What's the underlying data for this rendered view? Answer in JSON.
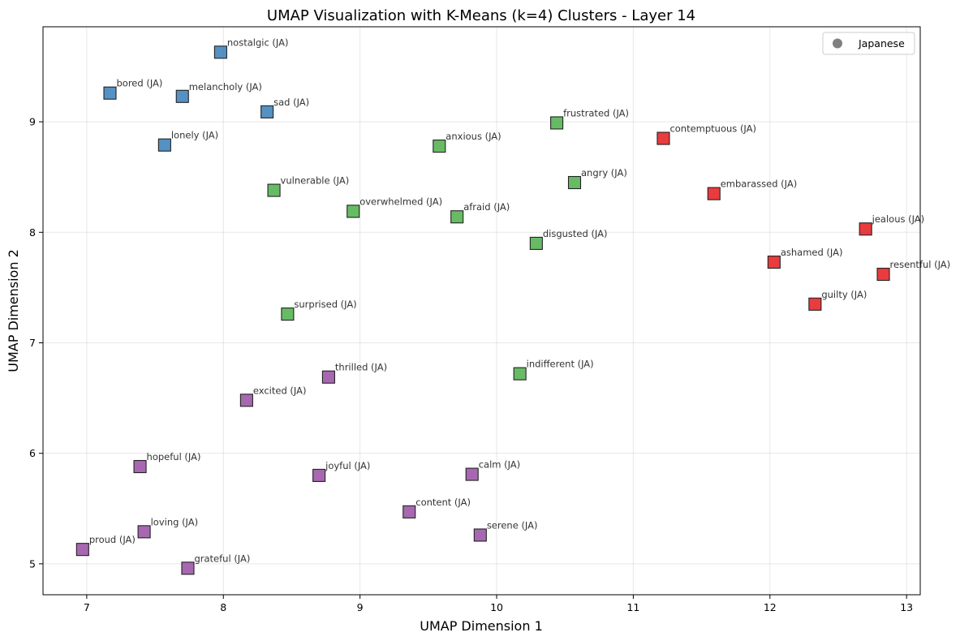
{
  "chart_data": {
    "type": "scatter",
    "title": "UMAP Visualization with K-Means (k=4) Clusters - Layer 14",
    "xlabel": "UMAP Dimension 1",
    "ylabel": "UMAP Dimension 2",
    "xlim": [
      6.68,
      13.1
    ],
    "ylim": [
      4.72,
      9.86
    ],
    "xticks": [
      7,
      8,
      9,
      10,
      11,
      12,
      13
    ],
    "yticks": [
      5,
      6,
      7,
      8,
      9
    ],
    "grid": true,
    "legend": {
      "placement": "top-right",
      "entries": [
        {
          "label": "Japanese",
          "color": "#808080",
          "marker": "circle"
        }
      ]
    },
    "cluster_colors": {
      "0": "#377eb8",
      "1": "#4daf4a",
      "2": "#e41a1c",
      "3": "#984ea3"
    },
    "points": [
      {
        "label": "nostalgic (JA)",
        "x": 7.98,
        "y": 9.63,
        "cluster": 0
      },
      {
        "label": "bored (JA)",
        "x": 7.17,
        "y": 9.26,
        "cluster": 0
      },
      {
        "label": "melancholy (JA)",
        "x": 7.7,
        "y": 9.23,
        "cluster": 0
      },
      {
        "label": "sad (JA)",
        "x": 8.32,
        "y": 9.09,
        "cluster": 0
      },
      {
        "label": "lonely (JA)",
        "x": 7.57,
        "y": 8.79,
        "cluster": 0
      },
      {
        "label": "frustrated (JA)",
        "x": 10.44,
        "y": 8.99,
        "cluster": 1
      },
      {
        "label": "anxious (JA)",
        "x": 9.58,
        "y": 8.78,
        "cluster": 1
      },
      {
        "label": "vulnerable (JA)",
        "x": 8.37,
        "y": 8.38,
        "cluster": 1
      },
      {
        "label": "angry (JA)",
        "x": 10.57,
        "y": 8.45,
        "cluster": 1
      },
      {
        "label": "overwhelmed (JA)",
        "x": 8.95,
        "y": 8.19,
        "cluster": 1
      },
      {
        "label": "afraid (JA)",
        "x": 9.71,
        "y": 8.14,
        "cluster": 1
      },
      {
        "label": "disgusted (JA)",
        "x": 10.29,
        "y": 7.9,
        "cluster": 1
      },
      {
        "label": "surprised (JA)",
        "x": 8.47,
        "y": 7.26,
        "cluster": 1
      },
      {
        "label": "indifferent (JA)",
        "x": 10.17,
        "y": 6.72,
        "cluster": 1
      },
      {
        "label": "contemptuous (JA)",
        "x": 11.22,
        "y": 8.85,
        "cluster": 2
      },
      {
        "label": "embarassed (JA)",
        "x": 11.59,
        "y": 8.35,
        "cluster": 2
      },
      {
        "label": "jealous (JA)",
        "x": 12.7,
        "y": 8.03,
        "cluster": 2
      },
      {
        "label": "ashamed (JA)",
        "x": 12.03,
        "y": 7.73,
        "cluster": 2
      },
      {
        "label": "resentful (JA)",
        "x": 12.83,
        "y": 7.62,
        "cluster": 2
      },
      {
        "label": "guilty (JA)",
        "x": 12.33,
        "y": 7.35,
        "cluster": 2
      },
      {
        "label": "thrilled (JA)",
        "x": 8.77,
        "y": 6.69,
        "cluster": 3
      },
      {
        "label": "excited (JA)",
        "x": 8.17,
        "y": 6.48,
        "cluster": 3
      },
      {
        "label": "hopeful (JA)",
        "x": 7.39,
        "y": 5.88,
        "cluster": 3
      },
      {
        "label": "joyful (JA)",
        "x": 8.7,
        "y": 5.8,
        "cluster": 3
      },
      {
        "label": "calm (JA)",
        "x": 9.82,
        "y": 5.81,
        "cluster": 3
      },
      {
        "label": "content (JA)",
        "x": 9.36,
        "y": 5.47,
        "cluster": 3
      },
      {
        "label": "loving (JA)",
        "x": 7.42,
        "y": 5.29,
        "cluster": 3
      },
      {
        "label": "serene (JA)",
        "x": 9.88,
        "y": 5.26,
        "cluster": 3
      },
      {
        "label": "proud (JA)",
        "x": 6.97,
        "y": 5.13,
        "cluster": 3
      },
      {
        "label": "grateful (JA)",
        "x": 7.74,
        "y": 4.96,
        "cluster": 3
      }
    ]
  }
}
